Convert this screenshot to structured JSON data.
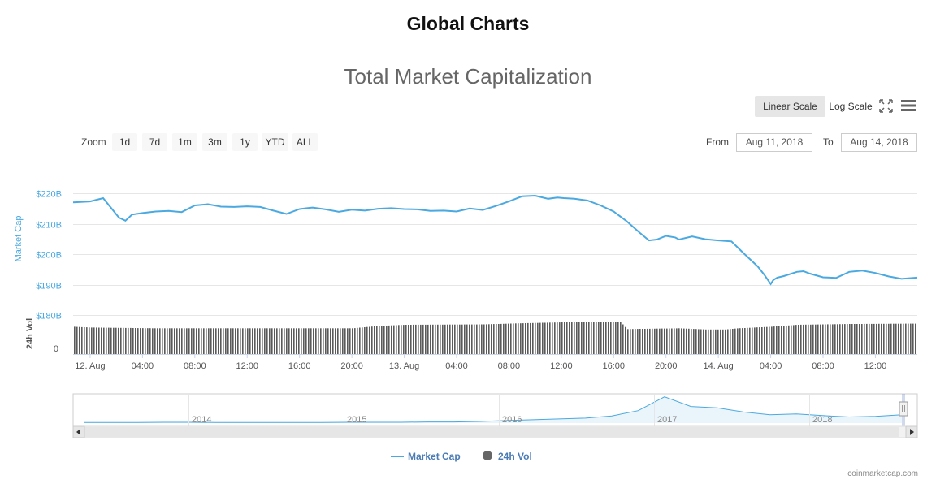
{
  "page": {
    "title": "Global Charts",
    "credit": "coinmarketcap.com"
  },
  "toolbar": {
    "scale_linear": "Linear Scale",
    "scale_log": "Log Scale",
    "zoom_label": "Zoom",
    "zoom_buttons": [
      "1d",
      "7d",
      "1m",
      "3m",
      "1y",
      "YTD",
      "ALL"
    ],
    "from_label": "From",
    "to_label": "To",
    "from_value": "Aug 11, 2018",
    "to_value": "Aug 14, 2018"
  },
  "colors": {
    "market_cap": "#4aa9e0",
    "volume": "#555555",
    "navigator_line": "#4aa9e0"
  },
  "chart_data": {
    "type": "line",
    "title": "Total Market Capitalization",
    "ylabel": "Market Cap",
    "ylabel2": "24h Vol",
    "ylim": [
      180,
      220
    ],
    "y_ticks": [
      "$220B",
      "$210B",
      "$200B",
      "$190B",
      "$180B"
    ],
    "y_tick_values": [
      220,
      210,
      200,
      190,
      180
    ],
    "vol_tick": "0",
    "x_ticks": [
      "12. Aug",
      "04:00",
      "08:00",
      "12:00",
      "16:00",
      "20:00",
      "13. Aug",
      "04:00",
      "08:00",
      "12:00",
      "16:00",
      "20:00",
      "14. Aug",
      "04:00",
      "08:00",
      "12:00"
    ],
    "x_tick_hours": [
      0,
      4,
      8,
      12,
      16,
      20,
      24,
      28,
      32,
      36,
      40,
      44,
      48,
      52,
      56,
      60
    ],
    "x_range_hours": [
      -1.3,
      63.2
    ],
    "series": [
      {
        "name": "Market Cap",
        "unit": "B",
        "x": [
          -1.3,
          0,
          1,
          2.2,
          2.7,
          3.2,
          4,
          5,
          6,
          7,
          8,
          9,
          10,
          11,
          12,
          13,
          14,
          15,
          16,
          17,
          18,
          19,
          20,
          21,
          22,
          23,
          24,
          25,
          26,
          27,
          28,
          29,
          30,
          31,
          32,
          33,
          34,
          35,
          35.7,
          36.2,
          37,
          38,
          39,
          40,
          41,
          42,
          42.7,
          43.3,
          44,
          44.7,
          45,
          46,
          47,
          48,
          49,
          50,
          51,
          51.5,
          52,
          52.2,
          52.5,
          53,
          54,
          54.5,
          55,
          56,
          57,
          58,
          59,
          60,
          61,
          62,
          63.2
        ],
        "y": [
          217,
          217.3,
          218.4,
          212,
          211,
          213,
          213.5,
          214,
          214.2,
          213.8,
          216,
          216.4,
          215.6,
          215.5,
          215.7,
          215.5,
          214.3,
          213.2,
          214.8,
          215.3,
          214.7,
          213.9,
          214.6,
          214.3,
          214.9,
          215.1,
          214.8,
          214.7,
          214.2,
          214.3,
          214,
          215,
          214.5,
          215.8,
          217.3,
          219,
          219.2,
          218.2,
          218.6,
          218.4,
          218.2,
          217.6,
          216,
          214,
          210.8,
          207,
          204.5,
          204.8,
          206,
          205.5,
          204.8,
          205.8,
          204.9,
          204.5,
          204.2,
          200,
          196,
          193.3,
          190.2,
          191.5,
          192.3,
          192.8,
          194.2,
          194.4,
          193.6,
          192.4,
          192.2,
          194.2,
          194.6,
          193.8,
          192.7,
          191.9,
          192.3
        ]
      },
      {
        "name": "24h Vol",
        "x": [
          -1.3,
          0,
          5,
          12,
          17,
          20,
          22,
          24,
          30,
          33,
          37,
          40.5,
          41,
          45,
          47,
          48.5,
          49.5,
          52,
          54,
          58,
          63.2
        ],
        "y": [
          0.7,
          0.68,
          0.66,
          0.66,
          0.66,
          0.66,
          0.72,
          0.75,
          0.76,
          0.79,
          0.82,
          0.82,
          0.64,
          0.66,
          0.63,
          0.63,
          0.66,
          0.7,
          0.75,
          0.77,
          0.78
        ]
      }
    ],
    "navigator": {
      "x_labels": [
        "2014",
        "2015",
        "2016",
        "2017",
        "2018"
      ],
      "profile": [
        0.02,
        0.02,
        0.02,
        0.03,
        0.03,
        0.02,
        0.02,
        0.02,
        0.02,
        0.02,
        0.03,
        0.03,
        0.03,
        0.04,
        0.04,
        0.06,
        0.09,
        0.12,
        0.15,
        0.18,
        0.26,
        0.45,
        0.95,
        0.6,
        0.55,
        0.4,
        0.3,
        0.33,
        0.27,
        0.22,
        0.24,
        0.3
      ]
    },
    "legend": [
      "Market Cap",
      "24h Vol"
    ],
    "legend_position": "bottom-center",
    "grid": true
  }
}
